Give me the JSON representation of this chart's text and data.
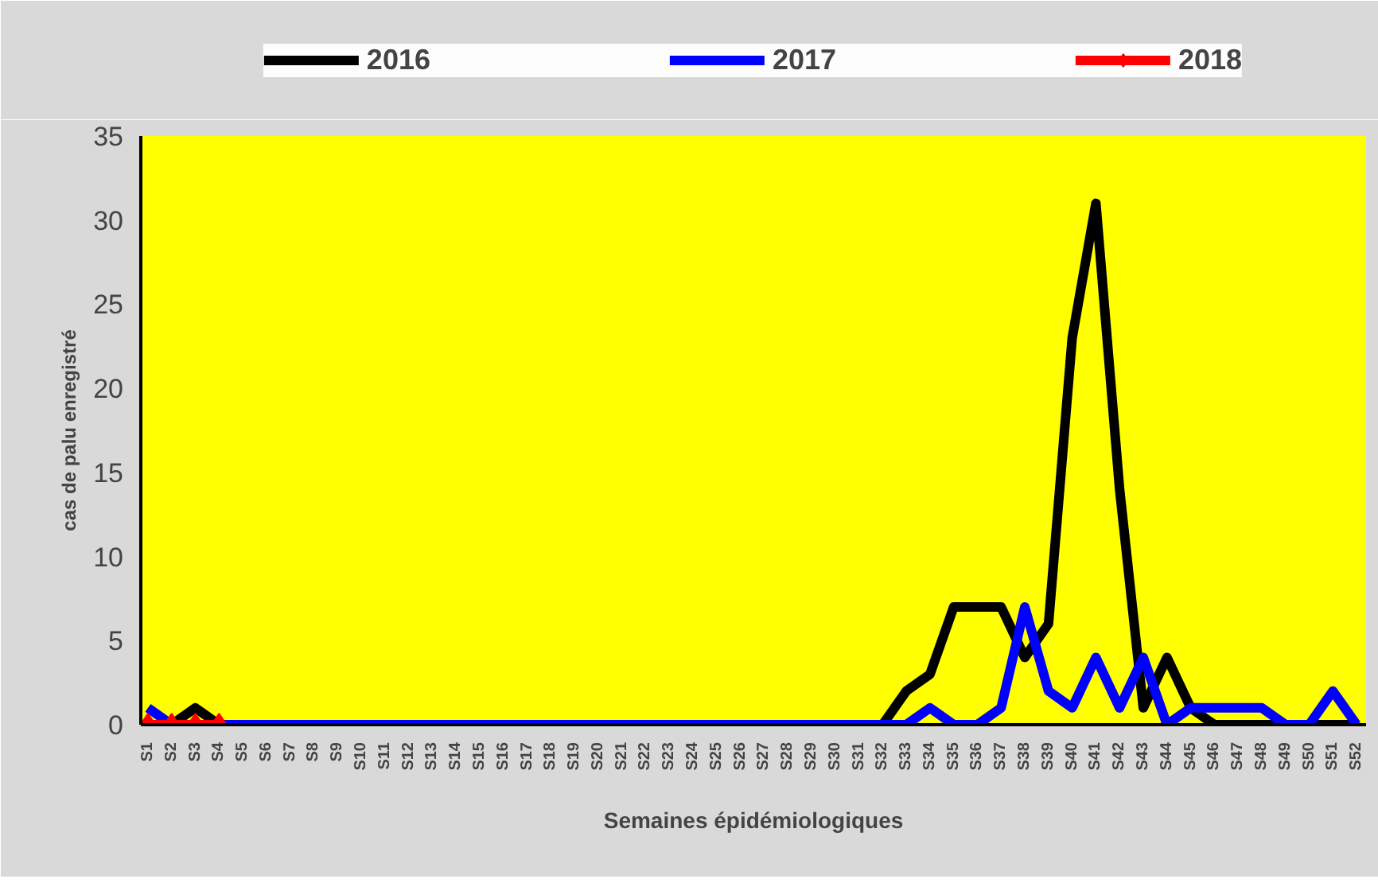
{
  "chart_data": {
    "type": "line",
    "xlabel": "Semaines épidémiologiques",
    "ylabel": "cas de palu enregistré",
    "categories": [
      "S1",
      "S2",
      "S3",
      "S4",
      "S5",
      "S6",
      "S7",
      "S8",
      "S9",
      "S10",
      "S11",
      "S12",
      "S13",
      "S14",
      "S15",
      "S16",
      "S17",
      "S18",
      "S19",
      "S20",
      "S21",
      "S22",
      "S23",
      "S24",
      "S25",
      "S26",
      "S27",
      "S28",
      "S29",
      "S30",
      "S31",
      "S32",
      "S33",
      "S34",
      "S35",
      "S36",
      "S37",
      "S38",
      "S39",
      "S40",
      "S41",
      "S42",
      "S43",
      "S44",
      "S45",
      "S46",
      "S47",
      "S48",
      "S49",
      "S50",
      "S51",
      "S52"
    ],
    "series": [
      {
        "name": "2016",
        "color": "#000000",
        "marker": "none",
        "values": [
          0,
          0,
          1,
          0,
          0,
          0,
          0,
          0,
          0,
          0,
          0,
          0,
          0,
          0,
          0,
          0,
          0,
          0,
          0,
          0,
          0,
          0,
          0,
          0,
          0,
          0,
          0,
          0,
          0,
          0,
          0,
          0,
          2,
          3,
          7,
          7,
          7,
          4,
          6,
          23,
          31,
          14,
          1,
          4,
          1,
          0,
          0,
          0,
          0,
          0,
          0,
          0
        ]
      },
      {
        "name": "2017",
        "color": "#0000ff",
        "marker": "none",
        "values": [
          1,
          0,
          0,
          0,
          0,
          0,
          0,
          0,
          0,
          0,
          0,
          0,
          0,
          0,
          0,
          0,
          0,
          0,
          0,
          0,
          0,
          0,
          0,
          0,
          0,
          0,
          0,
          0,
          0,
          0,
          0,
          0,
          0,
          1,
          0,
          0,
          1,
          7,
          2,
          1,
          4,
          1,
          4,
          0,
          1,
          1,
          1,
          1,
          0,
          0,
          2,
          0
        ]
      },
      {
        "name": "2018",
        "color": "#ff0000",
        "marker": "diamond",
        "values": [
          0,
          0,
          0,
          0,
          null,
          null,
          null,
          null,
          null,
          null,
          null,
          null,
          null,
          null,
          null,
          null,
          null,
          null,
          null,
          null,
          null,
          null,
          null,
          null,
          null,
          null,
          null,
          null,
          null,
          null,
          null,
          null,
          null,
          null,
          null,
          null,
          null,
          null,
          null,
          null,
          null,
          null,
          null,
          null,
          null,
          null,
          null,
          null,
          null,
          null,
          null,
          null
        ]
      }
    ],
    "ylim": [
      0,
      35
    ],
    "yticks": [
      0,
      5,
      10,
      15,
      20,
      25,
      30,
      35
    ],
    "grid": false,
    "legend": "top",
    "line_style": "solid"
  }
}
